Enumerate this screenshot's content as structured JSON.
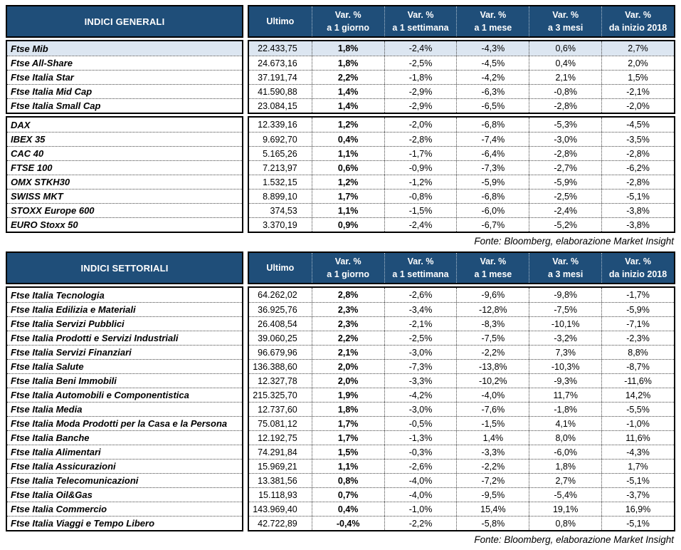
{
  "colors": {
    "header_bg": "#1F4E79",
    "header_text": "#FFFFFF",
    "highlight_row": "#DCE6F1",
    "border": "#000000"
  },
  "columns": [
    {
      "key": "ultimo",
      "line1": "Ultimo",
      "line2": ""
    },
    {
      "key": "var-1giorno",
      "line1": "Var. %",
      "line2": "a 1 giorno"
    },
    {
      "key": "var-1settimana",
      "line1": "Var. %",
      "line2": "a 1 settimana"
    },
    {
      "key": "var-1mese",
      "line1": "Var. %",
      "line2": "a 1 mese"
    },
    {
      "key": "var-3mesi",
      "line1": "Var. %",
      "line2": "a 3 mesi"
    },
    {
      "key": "var-inizio2018",
      "line1": "Var. %",
      "line2": "da inizio 2018"
    }
  ],
  "tables": [
    {
      "id": "general-indices-table",
      "title": "INDICI GENERALI",
      "source": "Fonte: Bloomberg, elaborazione Market Insight",
      "groups": [
        {
          "rows": [
            {
              "name": "Ftse Mib",
              "highlight": true,
              "values": [
                "22.433,75",
                "1,8%",
                "-2,4%",
                "-4,3%",
                "0,6%",
                "2,7%"
              ]
            },
            {
              "name": "Ftse All-Share",
              "highlight": false,
              "values": [
                "24.673,16",
                "1,8%",
                "-2,5%",
                "-4,5%",
                "0,4%",
                "2,0%"
              ]
            },
            {
              "name": "Ftse Italia Star",
              "highlight": false,
              "values": [
                "37.191,74",
                "2,2%",
                "-1,8%",
                "-4,2%",
                "2,1%",
                "1,5%"
              ]
            },
            {
              "name": "Ftse Italia Mid Cap",
              "highlight": false,
              "values": [
                "41.590,88",
                "1,4%",
                "-2,9%",
                "-6,3%",
                "-0,8%",
                "-2,1%"
              ]
            },
            {
              "name": "Ftse Italia Small Cap",
              "highlight": false,
              "values": [
                "23.084,15",
                "1,4%",
                "-2,9%",
                "-6,5%",
                "-2,8%",
                "-2,0%"
              ]
            }
          ]
        },
        {
          "rows": [
            {
              "name": "DAX",
              "highlight": false,
              "values": [
                "12.339,16",
                "1,2%",
                "-2,0%",
                "-6,8%",
                "-5,3%",
                "-4,5%"
              ]
            },
            {
              "name": "IBEX 35",
              "highlight": false,
              "values": [
                "9.692,70",
                "0,4%",
                "-2,8%",
                "-7,4%",
                "-3,0%",
                "-3,5%"
              ]
            },
            {
              "name": "CAC 40",
              "highlight": false,
              "values": [
                "5.165,26",
                "1,1%",
                "-1,7%",
                "-6,4%",
                "-2,8%",
                "-2,8%"
              ]
            },
            {
              "name": "FTSE 100",
              "highlight": false,
              "values": [
                "7.213,97",
                "0,6%",
                "-0,9%",
                "-7,3%",
                "-2,7%",
                "-6,2%"
              ]
            },
            {
              "name": "OMX STKH30",
              "highlight": false,
              "values": [
                "1.532,15",
                "1,2%",
                "-1,2%",
                "-5,9%",
                "-5,9%",
                "-2,8%"
              ]
            },
            {
              "name": "SWISS MKT",
              "highlight": false,
              "values": [
                "8.899,10",
                "1,7%",
                "-0,8%",
                "-6,8%",
                "-2,5%",
                "-5,1%"
              ]
            },
            {
              "name": "STOXX Europe 600",
              "highlight": false,
              "values": [
                "374,53",
                "1,1%",
                "-1,5%",
                "-6,0%",
                "-2,4%",
                "-3,8%"
              ]
            },
            {
              "name": "EURO Stoxx 50",
              "highlight": false,
              "values": [
                "3.370,19",
                "0,9%",
                "-2,4%",
                "-6,7%",
                "-5,2%",
                "-3,8%"
              ]
            }
          ]
        }
      ]
    },
    {
      "id": "sector-indices-table",
      "title": "INDICI SETTORIALI",
      "source": "Fonte: Bloomberg, elaborazione Market Insight",
      "groups": [
        {
          "rows": [
            {
              "name": "Ftse Italia Tecnologia",
              "highlight": false,
              "values": [
                "64.262,02",
                "2,8%",
                "-2,6%",
                "-9,6%",
                "-9,8%",
                "-1,7%"
              ]
            },
            {
              "name": "Ftse Italia Edilizia e Materiali",
              "highlight": false,
              "values": [
                "36.925,76",
                "2,3%",
                "-3,4%",
                "-12,8%",
                "-7,5%",
                "-5,9%"
              ]
            },
            {
              "name": "Ftse Italia Servizi Pubblici",
              "highlight": false,
              "values": [
                "26.408,54",
                "2,3%",
                "-2,1%",
                "-8,3%",
                "-10,1%",
                "-7,1%"
              ]
            },
            {
              "name": "Ftse Italia Prodotti e Servizi Industriali",
              "highlight": false,
              "values": [
                "39.060,25",
                "2,2%",
                "-2,5%",
                "-7,5%",
                "-3,2%",
                "-2,3%"
              ]
            },
            {
              "name": "Ftse Italia Servizi Finanziari",
              "highlight": false,
              "values": [
                "96.679,96",
                "2,1%",
                "-3,0%",
                "-2,2%",
                "7,3%",
                "8,8%"
              ]
            },
            {
              "name": "Ftse Italia Salute",
              "highlight": false,
              "values": [
                "136.388,60",
                "2,0%",
                "-7,3%",
                "-13,8%",
                "-10,3%",
                "-8,7%"
              ]
            },
            {
              "name": "Ftse Italia Beni Immobili",
              "highlight": false,
              "values": [
                "12.327,78",
                "2,0%",
                "-3,3%",
                "-10,2%",
                "-9,3%",
                "-11,6%"
              ]
            },
            {
              "name": "Ftse Italia Automobili e Componentistica",
              "highlight": false,
              "values": [
                "215.325,70",
                "1,9%",
                "-4,2%",
                "-4,0%",
                "11,7%",
                "14,2%"
              ]
            },
            {
              "name": "Ftse Italia Media",
              "highlight": false,
              "values": [
                "12.737,60",
                "1,8%",
                "-3,0%",
                "-7,6%",
                "-1,8%",
                "-5,5%"
              ]
            },
            {
              "name": "Ftse Italia Moda Prodotti per la Casa e la Persona",
              "highlight": false,
              "values": [
                "75.081,12",
                "1,7%",
                "-0,5%",
                "-1,5%",
                "4,1%",
                "-1,0%"
              ]
            },
            {
              "name": "Ftse Italia Banche",
              "highlight": false,
              "values": [
                "12.192,75",
                "1,7%",
                "-1,3%",
                "1,4%",
                "8,0%",
                "11,6%"
              ]
            },
            {
              "name": "Ftse Italia Alimentari",
              "highlight": false,
              "values": [
                "74.291,84",
                "1,5%",
                "-0,3%",
                "-3,3%",
                "-6,0%",
                "-4,3%"
              ]
            },
            {
              "name": "Ftse Italia Assicurazioni",
              "highlight": false,
              "values": [
                "15.969,21",
                "1,1%",
                "-2,6%",
                "-2,2%",
                "1,8%",
                "1,7%"
              ]
            },
            {
              "name": "Ftse Italia Telecomunicazioni",
              "highlight": false,
              "values": [
                "13.381,56",
                "0,8%",
                "-4,0%",
                "-7,2%",
                "2,7%",
                "-5,1%"
              ]
            },
            {
              "name": "Ftse Italia Oil&Gas",
              "highlight": false,
              "values": [
                "15.118,93",
                "0,7%",
                "-4,0%",
                "-9,5%",
                "-5,4%",
                "-3,7%"
              ]
            },
            {
              "name": "Ftse Italia Commercio",
              "highlight": false,
              "values": [
                "143.969,40",
                "0,4%",
                "-1,0%",
                "15,4%",
                "19,1%",
                "16,9%"
              ]
            },
            {
              "name": "Ftse Italia Viaggi e Tempo Libero",
              "highlight": false,
              "values": [
                "42.722,89",
                "-0,4%",
                "-2,2%",
                "-5,8%",
                "0,8%",
                "-5,1%"
              ]
            }
          ]
        }
      ]
    }
  ]
}
